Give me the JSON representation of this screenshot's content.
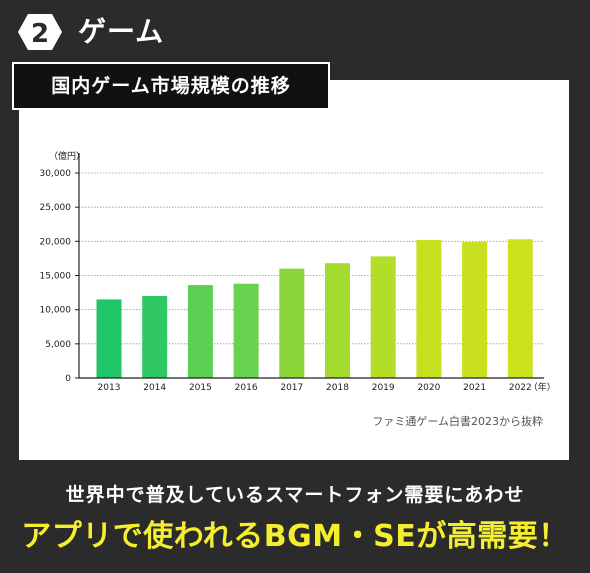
{
  "header": {
    "number": "2",
    "title": "ゲーム"
  },
  "chart_title": "国内ゲーム市場規模の推移",
  "source": "ファミ通ゲーム白書2023から抜粋",
  "footer": {
    "line1": "世界中で普及しているスマートフォン需要にあわせ",
    "line2": "アプリで使われるBGM・SEが高需要！"
  },
  "chart_data": {
    "type": "bar",
    "categories": [
      "2013",
      "2014",
      "2015",
      "2016",
      "2017",
      "2018",
      "2019",
      "2020",
      "2021",
      "2022"
    ],
    "values": [
      11500,
      12000,
      13600,
      13800,
      16000,
      16800,
      17800,
      20200,
      19900,
      20300
    ],
    "colors": [
      "#22c66a",
      "#2fc864",
      "#5bd055",
      "#66d24f",
      "#8cd63a",
      "#a3db2f",
      "#b3dd27",
      "#c6e01f",
      "#c8e01e",
      "#cbe11c"
    ],
    "ylim": [
      0,
      30000
    ],
    "yticks": [
      "0",
      "5,000",
      "10,000",
      "15,000",
      "20,000",
      "25,000",
      "30,000"
    ],
    "ytick_values": [
      0,
      5000,
      10000,
      15000,
      20000,
      25000,
      30000
    ],
    "y_unit": "（億円）",
    "x_unit": "（年）",
    "grid": true
  }
}
